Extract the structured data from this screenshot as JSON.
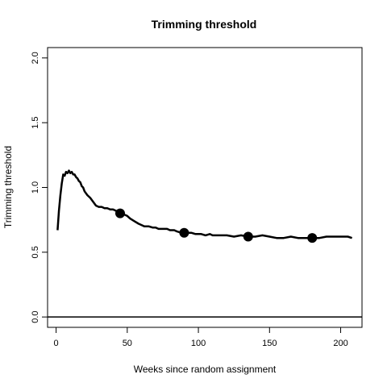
{
  "chart_data": {
    "type": "line",
    "title": "Trimming threshold",
    "xlabel": "Weeks since random assignment",
    "ylabel": "Trimming threshold",
    "xlim": [
      -6,
      215
    ],
    "ylim": [
      -0.08,
      2.08
    ],
    "xticks": [
      0,
      50,
      100,
      150,
      200
    ],
    "xtick_labels": [
      "0",
      "50",
      "100",
      "150",
      "200"
    ],
    "yticks": [
      0.0,
      0.5,
      1.0,
      1.5,
      2.0
    ],
    "ytick_labels": [
      "0.0",
      "0.5",
      "1.0",
      "1.5",
      "2.0"
    ],
    "grid": false,
    "hline": 0,
    "series": [
      {
        "values_x": [
          1,
          2,
          3,
          4,
          5,
          6,
          7,
          8,
          9,
          10,
          11,
          12,
          13,
          14,
          15,
          16,
          17,
          18,
          19,
          20,
          22,
          24,
          26,
          28,
          30,
          32,
          34,
          36,
          38,
          40,
          42,
          44,
          46,
          48,
          50,
          52,
          55,
          58,
          60,
          62,
          65,
          68,
          70,
          72,
          75,
          78,
          80,
          83,
          85,
          88,
          90,
          92,
          95,
          98,
          100,
          102,
          105,
          108,
          110,
          115,
          120,
          125,
          130,
          135,
          140,
          145,
          150,
          155,
          160,
          165,
          170,
          175,
          180,
          185,
          190,
          195,
          200,
          205,
          208
        ],
        "values_y": [
          0.67,
          0.82,
          0.94,
          1.03,
          1.1,
          1.09,
          1.12,
          1.11,
          1.13,
          1.11,
          1.12,
          1.1,
          1.1,
          1.08,
          1.07,
          1.05,
          1.04,
          1.01,
          1.0,
          0.97,
          0.94,
          0.92,
          0.89,
          0.86,
          0.85,
          0.85,
          0.84,
          0.84,
          0.83,
          0.83,
          0.82,
          0.81,
          0.81,
          0.79,
          0.78,
          0.76,
          0.74,
          0.72,
          0.71,
          0.7,
          0.7,
          0.69,
          0.69,
          0.68,
          0.68,
          0.68,
          0.67,
          0.67,
          0.66,
          0.65,
          0.65,
          0.65,
          0.65,
          0.64,
          0.64,
          0.64,
          0.63,
          0.64,
          0.63,
          0.63,
          0.63,
          0.62,
          0.63,
          0.62,
          0.62,
          0.63,
          0.62,
          0.61,
          0.61,
          0.62,
          0.61,
          0.61,
          0.61,
          0.61,
          0.62,
          0.62,
          0.62,
          0.62,
          0.61
        ]
      }
    ],
    "markers": [
      {
        "x": 45,
        "y": 0.8
      },
      {
        "x": 90,
        "y": 0.65
      },
      {
        "x": 135,
        "y": 0.62
      },
      {
        "x": 180,
        "y": 0.61
      }
    ]
  }
}
